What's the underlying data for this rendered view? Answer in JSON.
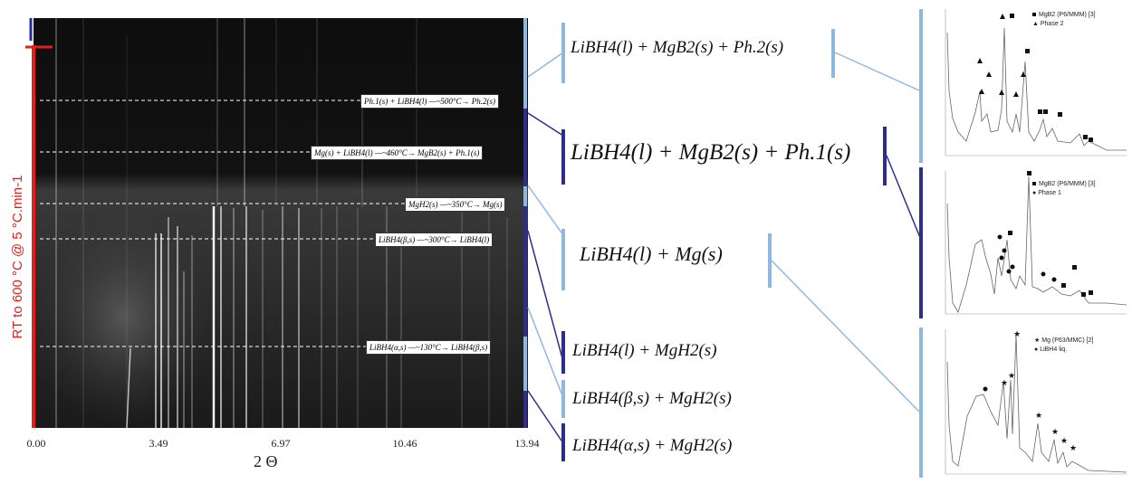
{
  "heatmap": {
    "ylabel": "RT to 600 °C @ 5 °C.min-1",
    "xlabel": "2 Θ",
    "xticks": [
      "0.00",
      "3.49",
      "6.97",
      "10.46",
      "13.94"
    ],
    "reactions": [
      "Ph.1(s) + LiBH4(l) —~500°C→ Ph.2(s)",
      "Mg(s) + LiBH4(l) —~460°C→ MgB2(s) + Ph.1(s)",
      "MgH2(s) —~350°C→ Mg(s)",
      "LiBH4(β,s) —~300°C→ LiBH4(l)",
      "LiBH4(α,s) —~130°C→ LiBH4(β,s)"
    ]
  },
  "phases": [
    "LiBH4(l) + MgB2(s) + Ph.2(s)",
    "LiBH4(l) + MgB2(s) + Ph.1(s)",
    "LiBH4(l) + Mg(s)",
    "LiBH4(l) + MgH2(s)",
    "LiBH4(β,s) + MgH2(s)",
    "LiBH4(α,s) + MgH2(s)"
  ],
  "insets": [
    {
      "legend": [
        "MgB2 (P6/MMM) [3]",
        "Phase 2"
      ],
      "markers": [
        "square",
        "triangle"
      ]
    },
    {
      "legend": [
        "MgB2 (P6/MMM) [3]",
        "Phase 1"
      ],
      "markers": [
        "square",
        "circle"
      ]
    },
    {
      "legend": [
        "Mg (P63/MMC) [2]",
        "LiBH4 liq."
      ],
      "markers": [
        "star",
        "circle"
      ]
    }
  ],
  "colors": {
    "temperature_axis": "#e0201e",
    "light_bracket": "#8fb8e0",
    "dark_bracket": "#2e2e8a"
  }
}
